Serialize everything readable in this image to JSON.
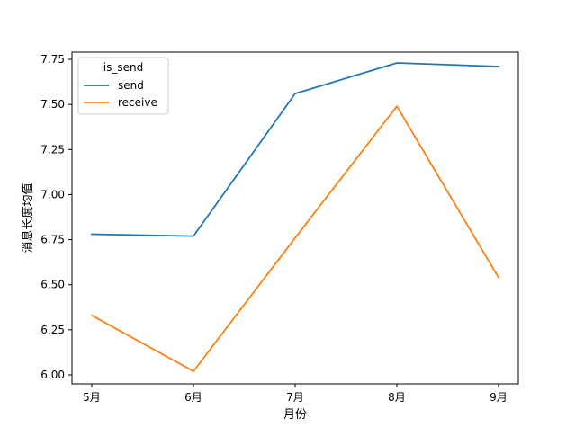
{
  "chart_data": {
    "type": "line",
    "title": "",
    "xlabel": "月份",
    "ylabel": "消息长度均值",
    "categories": [
      "5月",
      "6月",
      "7月",
      "8月",
      "9月"
    ],
    "ylim": [
      5.95,
      7.79
    ],
    "yticks": [
      "6.00",
      "6.25",
      "6.50",
      "6.75",
      "7.00",
      "7.25",
      "7.50",
      "7.75"
    ],
    "grid": false,
    "legend": {
      "title": "is_send",
      "position": "top-left"
    },
    "series": [
      {
        "name": "send",
        "color": "#1f77b4",
        "values": [
          6.78,
          6.77,
          7.56,
          7.73,
          7.71
        ]
      },
      {
        "name": "receive",
        "color": "#ff7f0e",
        "values": [
          6.33,
          6.02,
          6.76,
          7.49,
          6.54
        ]
      }
    ]
  }
}
